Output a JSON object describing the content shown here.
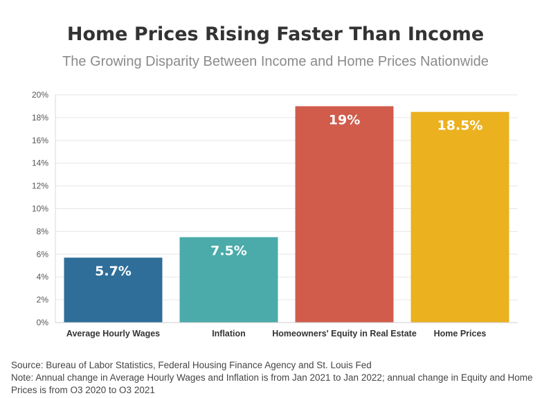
{
  "chart_data": {
    "type": "bar",
    "title": "Home Prices Rising Faster Than Income",
    "subtitle": "The Growing Disparity Between Income and Home Prices Nationwide",
    "categories": [
      "Average Hourly Wages",
      "Inflation",
      "Homeowners' Equity in Real Estate",
      "Home Prices"
    ],
    "values": [
      5.7,
      7.5,
      19,
      18.5
    ],
    "data_labels": [
      "5.7%",
      "7.5%",
      "19%",
      "18.5%"
    ],
    "colors": [
      "#2e6e99",
      "#4aabaa",
      "#d15c4c",
      "#ebb11f"
    ],
    "ylim": [
      0,
      20
    ],
    "yticks": [
      0,
      2,
      4,
      6,
      8,
      10,
      12,
      14,
      16,
      18,
      20
    ],
    "ytick_labels": [
      "0%",
      "2%",
      "4%",
      "6%",
      "8%",
      "10%",
      "12%",
      "14%",
      "16%",
      "18%",
      "20%"
    ],
    "xlabel": "",
    "ylabel": "",
    "grid": true
  },
  "footer": {
    "source": "Source: Bureau of Labor Statistics, Federal Housing Finance Agency and St. Louis Fed",
    "note": "Note: Annual change in Average Hourly Wages and Inflation is from Jan 2021 to Jan 2022; annual change in Equity and Home Prices is from O3 2020 to O3 2021"
  }
}
